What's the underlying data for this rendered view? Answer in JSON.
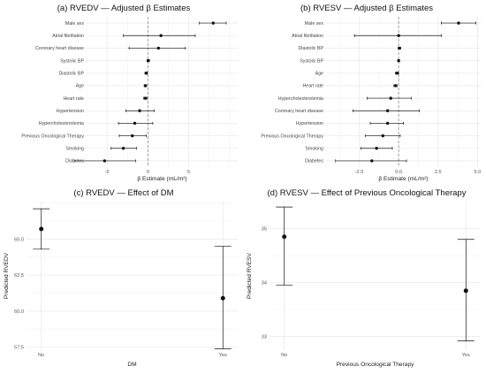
{
  "chart_data": [
    {
      "id": "a",
      "type": "forest",
      "title": "(a) RVEDV — Adjusted β Estimates",
      "xlabel": "β Estimate (mL/m²)",
      "ylabel": "",
      "xlim": [
        -7.5,
        11
      ],
      "xticks": [
        -5,
        0,
        5
      ],
      "xtick_labels": [
        "-5",
        "0",
        "5"
      ],
      "reference_line": 0,
      "grid": true,
      "rows": [
        {
          "label": "Male sex",
          "estimate": 8.0,
          "ci_low": 6.3,
          "ci_high": 9.6
        },
        {
          "label": "Atrial fibrillation",
          "estimate": 1.6,
          "ci_low": -3.0,
          "ci_high": 5.8
        },
        {
          "label": "Coronary heart disease",
          "estimate": 1.3,
          "ci_low": -2.3,
          "ci_high": 4.6
        },
        {
          "label": "Systolic BP",
          "estimate": 0.05,
          "ci_low": -0.1,
          "ci_high": 0.2
        },
        {
          "label": "Diastolic BP",
          "estimate": -0.2,
          "ci_low": -0.35,
          "ci_high": -0.05
        },
        {
          "label": "Age",
          "estimate": -0.3,
          "ci_low": -0.45,
          "ci_high": -0.15
        },
        {
          "label": "Heart rate",
          "estimate": -0.3,
          "ci_low": -0.5,
          "ci_high": -0.1
        },
        {
          "label": "Hypertension",
          "estimate": -1.0,
          "ci_low": -2.7,
          "ci_high": 0.8
        },
        {
          "label": "Hypercholesterolemia",
          "estimate": -1.6,
          "ci_low": -3.6,
          "ci_high": 0.6
        },
        {
          "label": "Previous Oncological Therapy",
          "estimate": -1.9,
          "ci_low": -3.5,
          "ci_high": -0.2
        },
        {
          "label": "Smoking",
          "estimate": -3.0,
          "ci_low": -4.5,
          "ci_high": -1.4
        },
        {
          "label": "Diabetes",
          "estimate": -5.3,
          "ci_low": -9.0,
          "ci_high": -1.5
        }
      ]
    },
    {
      "id": "b",
      "type": "forest",
      "title": "(b) RVESV — Adjusted β Estimates",
      "xlabel": "β Estimate (mL/m²)",
      "ylabel": "",
      "xlim": [
        -4.6,
        5.2
      ],
      "xticks": [
        -2.5,
        0,
        2.5,
        5
      ],
      "xtick_labels": [
        "-2.5",
        "0.0",
        "2.5",
        "5.0"
      ],
      "reference_line": 0,
      "grid": true,
      "rows": [
        {
          "label": "Male sex",
          "estimate": 3.8,
          "ci_low": 2.7,
          "ci_high": 4.9
        },
        {
          "label": "Atrial fibrillation",
          "estimate": 0.0,
          "ci_low": -2.8,
          "ci_high": 2.7
        },
        {
          "label": "Diastolic BP",
          "estimate": 0.05,
          "ci_low": -0.03,
          "ci_high": 0.13
        },
        {
          "label": "Systolic BP",
          "estimate": 0.0,
          "ci_low": -0.05,
          "ci_high": 0.05
        },
        {
          "label": "Age",
          "estimate": -0.1,
          "ci_low": -0.2,
          "ci_high": 0.0
        },
        {
          "label": "Heart rate",
          "estimate": -0.2,
          "ci_low": -0.3,
          "ci_high": -0.1
        },
        {
          "label": "Hypercholesterolemia",
          "estimate": -0.5,
          "ci_low": -2.0,
          "ci_high": 0.8
        },
        {
          "label": "Coronary heart disease",
          "estimate": -0.7,
          "ci_low": -2.9,
          "ci_high": 1.3
        },
        {
          "label": "Hypertension",
          "estimate": -0.7,
          "ci_low": -1.8,
          "ci_high": 0.3
        },
        {
          "label": "Previous Oncological Therapy",
          "estimate": -1.0,
          "ci_low": -2.1,
          "ci_high": 0.1
        },
        {
          "label": "Smoking",
          "estimate": -1.4,
          "ci_low": -2.4,
          "ci_high": -0.4
        },
        {
          "label": "Diabetes",
          "estimate": -1.7,
          "ci_low": -4.0,
          "ci_high": 0.5
        }
      ]
    },
    {
      "id": "c",
      "type": "point_errorbar",
      "title": "(c) RVEDV — Effect of DM",
      "xlabel": "DM",
      "ylabel": "Predicted RVEDV",
      "ylim": [
        57.3,
        67.6
      ],
      "yticks": [
        57.5,
        60.0,
        62.5,
        65.0
      ],
      "ytick_labels": [
        "57.5",
        "60.0",
        "62.5",
        "65.0"
      ],
      "categories": [
        "No",
        "Yes"
      ],
      "grid": true,
      "points": [
        {
          "category": "No",
          "estimate": 65.7,
          "ci_low": 64.3,
          "ci_high": 67.1
        },
        {
          "category": "Yes",
          "estimate": 60.9,
          "ci_low": 57.4,
          "ci_high": 64.5
        }
      ]
    },
    {
      "id": "d",
      "type": "point_errorbar",
      "title": "(d) RVESV — Effect of Previous Oncological Therapy",
      "xlabel": "Previous Oncological Therapy",
      "ylabel": "Predicted RVESV",
      "ylim": [
        32.75,
        35.5
      ],
      "yticks": [
        33,
        34,
        35
      ],
      "ytick_labels": [
        "33",
        "34",
        "35"
      ],
      "categories": [
        "No",
        "Yes"
      ],
      "grid": true,
      "points": [
        {
          "category": "No",
          "estimate": 34.85,
          "ci_low": 33.95,
          "ci_high": 35.4
        },
        {
          "category": "Yes",
          "estimate": 33.85,
          "ci_low": 32.92,
          "ci_high": 34.8
        }
      ]
    }
  ]
}
